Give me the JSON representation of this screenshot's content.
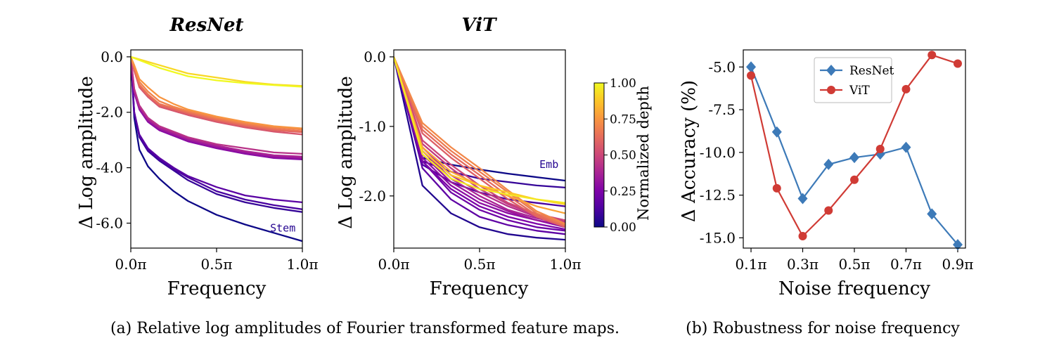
{
  "figure": {
    "caption_a": "(a) Relative log amplitudes of Fourier transformed feature maps.",
    "caption_b": "(b) Robustness for noise frequency"
  },
  "chart_data": [
    {
      "type": "line",
      "title": "ResNet",
      "xlabel": "Frequency",
      "ylabel": "Δ Log amplitude",
      "xlim": [
        0,
        1
      ],
      "ylim": [
        -6.9,
        0.25
      ],
      "xticks": [
        0,
        0.5,
        1
      ],
      "xtick_labels": [
        "0.0π",
        "0.5π",
        "1.0π"
      ],
      "yticks": [
        0,
        -2,
        -4,
        -6
      ],
      "ytick_labels": [
        "0.0",
        "-2.0",
        "-4.0",
        "-6.0"
      ],
      "colormap": "plasma",
      "color_range": [
        0,
        1
      ],
      "annotation": {
        "text": "Stem",
        "x": 0.96,
        "y": -6.3
      },
      "series": [
        {
          "depth": 0.0,
          "x": [
            0,
            0.02,
            0.05,
            0.1,
            0.167,
            0.25,
            0.333,
            0.5,
            0.667,
            0.833,
            1.0
          ],
          "y": [
            0,
            -2.2,
            -3.35,
            -3.95,
            -4.4,
            -4.85,
            -5.2,
            -5.7,
            -6.05,
            -6.35,
            -6.65
          ]
        },
        {
          "depth": 0.08,
          "x": [
            0,
            0.02,
            0.05,
            0.1,
            0.167,
            0.25,
            0.333,
            0.5,
            0.667,
            0.833,
            1.0
          ],
          "y": [
            0,
            -2.0,
            -2.9,
            -3.4,
            -3.75,
            -4.1,
            -4.45,
            -4.95,
            -5.25,
            -5.45,
            -5.6
          ]
        },
        {
          "depth": 0.12,
          "x": [
            0,
            0.02,
            0.05,
            0.1,
            0.167,
            0.25,
            0.333,
            0.5,
            0.667,
            0.833,
            1.0
          ],
          "y": [
            0,
            -2.0,
            -2.85,
            -3.35,
            -3.7,
            -4.05,
            -4.35,
            -4.85,
            -5.15,
            -5.35,
            -5.5
          ]
        },
        {
          "depth": 0.16,
          "x": [
            0,
            0.02,
            0.05,
            0.1,
            0.167,
            0.25,
            0.333,
            0.5,
            0.667,
            0.833,
            1.0
          ],
          "y": [
            0,
            -2.0,
            -2.8,
            -3.3,
            -3.65,
            -4.0,
            -4.3,
            -4.7,
            -5.0,
            -5.15,
            -5.25
          ]
        },
        {
          "depth": 0.28,
          "x": [
            0,
            0.02,
            0.05,
            0.1,
            0.167,
            0.25,
            0.333,
            0.5,
            0.667,
            0.833,
            1.0
          ],
          "y": [
            0,
            -1.3,
            -1.9,
            -2.35,
            -2.65,
            -2.85,
            -3.05,
            -3.3,
            -3.5,
            -3.65,
            -3.7
          ]
        },
        {
          "depth": 0.33,
          "x": [
            0,
            0.02,
            0.05,
            0.1,
            0.167,
            0.25,
            0.333,
            0.5,
            0.667,
            0.833,
            1.0
          ],
          "y": [
            0,
            -1.25,
            -1.85,
            -2.3,
            -2.6,
            -2.8,
            -3.0,
            -3.25,
            -3.45,
            -3.6,
            -3.65
          ]
        },
        {
          "depth": 0.38,
          "x": [
            0,
            0.02,
            0.05,
            0.1,
            0.167,
            0.25,
            0.333,
            0.5,
            0.667,
            0.833,
            1.0
          ],
          "y": [
            0,
            -1.2,
            -1.8,
            -2.25,
            -2.55,
            -2.75,
            -2.95,
            -3.2,
            -3.4,
            -3.55,
            -3.6
          ]
        },
        {
          "depth": 0.43,
          "x": [
            0,
            0.02,
            0.05,
            0.1,
            0.167,
            0.25,
            0.333,
            0.5,
            0.667,
            0.833,
            1.0
          ],
          "y": [
            0,
            -1.15,
            -1.75,
            -2.2,
            -2.5,
            -2.7,
            -2.9,
            -3.15,
            -3.3,
            -3.45,
            -3.5
          ]
        },
        {
          "depth": 0.55,
          "x": [
            0,
            0.02,
            0.05,
            0.1,
            0.167,
            0.25,
            0.333,
            0.5,
            0.667,
            0.833,
            1.0
          ],
          "y": [
            0,
            -0.5,
            -1.1,
            -1.45,
            -1.8,
            -1.95,
            -2.1,
            -2.35,
            -2.55,
            -2.7,
            -2.8
          ]
        },
        {
          "depth": 0.6,
          "x": [
            0,
            0.02,
            0.05,
            0.1,
            0.167,
            0.25,
            0.333,
            0.5,
            0.667,
            0.833,
            1.0
          ],
          "y": [
            0,
            -0.45,
            -1.05,
            -1.4,
            -1.75,
            -1.9,
            -2.05,
            -2.3,
            -2.5,
            -2.65,
            -2.72
          ]
        },
        {
          "depth": 0.65,
          "x": [
            0,
            0.02,
            0.05,
            0.1,
            0.167,
            0.25,
            0.333,
            0.5,
            0.667,
            0.833,
            1.0
          ],
          "y": [
            0,
            -0.4,
            -1.0,
            -1.35,
            -1.7,
            -1.85,
            -2.0,
            -2.25,
            -2.45,
            -2.6,
            -2.68
          ]
        },
        {
          "depth": 0.7,
          "x": [
            0,
            0.02,
            0.05,
            0.1,
            0.167,
            0.25,
            0.333,
            0.5,
            0.667,
            0.833,
            1.0
          ],
          "y": [
            0,
            -0.35,
            -0.9,
            -1.25,
            -1.6,
            -1.8,
            -1.95,
            -2.2,
            -2.4,
            -2.55,
            -2.62
          ]
        },
        {
          "depth": 0.75,
          "x": [
            0,
            0.02,
            0.05,
            0.1,
            0.167,
            0.25,
            0.333,
            0.5,
            0.667,
            0.833,
            1.0
          ],
          "y": [
            0,
            -0.3,
            -0.8,
            -1.1,
            -1.45,
            -1.7,
            -1.9,
            -2.15,
            -2.35,
            -2.5,
            -2.58
          ]
        },
        {
          "depth": 0.92,
          "x": [
            0,
            0.167,
            0.333,
            0.5,
            0.667,
            0.833,
            1.0
          ],
          "y": [
            0,
            -0.3,
            -0.6,
            -0.75,
            -0.9,
            -1.0,
            -1.05
          ]
        },
        {
          "depth": 1.0,
          "x": [
            0,
            0.167,
            0.333,
            0.5,
            0.667,
            0.833,
            1.0
          ],
          "y": [
            0,
            -0.4,
            -0.7,
            -0.85,
            -0.95,
            -1.02,
            -1.08
          ]
        }
      ]
    },
    {
      "type": "line",
      "title": "ViT",
      "xlabel": "Frequency",
      "ylabel": "Δ Log amplitude",
      "xlim": [
        0,
        1
      ],
      "ylim": [
        -2.75,
        0.1
      ],
      "xticks": [
        0,
        0.5,
        1
      ],
      "xtick_labels": [
        "0.0π",
        "0.5π",
        "1.0π"
      ],
      "yticks": [
        0,
        -1,
        -2
      ],
      "ytick_labels": [
        "0.0",
        "-1.0",
        "-2.0"
      ],
      "colormap": "plasma",
      "color_range": [
        0,
        1
      ],
      "annotation": {
        "text": "Emb",
        "x": 0.96,
        "y": -1.6
      },
      "series": [
        {
          "depth": 0.0,
          "x": [
            0,
            0.167,
            0.333,
            0.5,
            0.667,
            0.833,
            1.0
          ],
          "y": [
            0,
            -1.45,
            -1.55,
            -1.62,
            -1.68,
            -1.73,
            -1.78
          ]
        },
        {
          "depth": 0.04,
          "x": [
            0,
            0.167,
            0.333,
            0.5,
            0.667,
            0.833,
            1.0
          ],
          "y": [
            0,
            -1.85,
            -2.25,
            -2.45,
            -2.55,
            -2.6,
            -2.63
          ]
        },
        {
          "depth": 0.08,
          "x": [
            0,
            0.167,
            0.333,
            0.5,
            0.667,
            0.833,
            1.0
          ],
          "y": [
            0,
            -1.5,
            -1.65,
            -1.75,
            -1.8,
            -1.85,
            -1.88
          ]
        },
        {
          "depth": 0.12,
          "x": [
            0,
            0.167,
            0.333,
            0.5,
            0.667,
            0.833,
            1.0
          ],
          "y": [
            0,
            -1.55,
            -1.8,
            -1.95,
            -2.05,
            -2.1,
            -2.15
          ]
        },
        {
          "depth": 0.17,
          "x": [
            0,
            0.167,
            0.333,
            0.5,
            0.667,
            0.833,
            1.0
          ],
          "y": [
            0,
            -1.6,
            -2.05,
            -2.3,
            -2.42,
            -2.5,
            -2.55
          ]
        },
        {
          "depth": 0.21,
          "x": [
            0,
            0.167,
            0.333,
            0.5,
            0.667,
            0.833,
            1.0
          ],
          "y": [
            0,
            -1.5,
            -1.95,
            -2.2,
            -2.35,
            -2.45,
            -2.5
          ]
        },
        {
          "depth": 0.25,
          "x": [
            0,
            0.167,
            0.333,
            0.5,
            0.667,
            0.833,
            1.0
          ],
          "y": [
            0,
            -1.5,
            -1.9,
            -2.15,
            -2.3,
            -2.4,
            -2.48
          ]
        },
        {
          "depth": 0.29,
          "x": [
            0,
            0.167,
            0.333,
            0.5,
            0.667,
            0.833,
            1.0
          ],
          "y": [
            0,
            -1.45,
            -1.85,
            -2.1,
            -2.25,
            -2.35,
            -2.45
          ]
        },
        {
          "depth": 0.33,
          "x": [
            0,
            0.167,
            0.333,
            0.5,
            0.667,
            0.833,
            1.0
          ],
          "y": [
            0,
            -1.4,
            -1.8,
            -2.05,
            -2.22,
            -2.35,
            -2.42
          ]
        },
        {
          "depth": 0.38,
          "x": [
            0,
            0.167,
            0.333,
            0.5,
            0.667,
            0.833,
            1.0
          ],
          "y": [
            0,
            -1.35,
            -1.75,
            -2.0,
            -2.2,
            -2.32,
            -2.4
          ]
        },
        {
          "depth": 0.42,
          "x": [
            0,
            0.167,
            0.333,
            0.5,
            0.667,
            0.833,
            1.0
          ],
          "y": [
            0,
            -1.3,
            -1.7,
            -1.95,
            -2.15,
            -2.3,
            -2.38
          ]
        },
        {
          "depth": 0.46,
          "x": [
            0,
            0.167,
            0.333,
            0.5,
            0.667,
            0.833,
            1.0
          ],
          "y": [
            0,
            -1.25,
            -1.6,
            -1.9,
            -2.12,
            -2.28,
            -2.36
          ]
        },
        {
          "depth": 0.5,
          "x": [
            0,
            0.167,
            0.333,
            0.5,
            0.667,
            0.833,
            1.0
          ],
          "y": [
            0,
            -1.2,
            -1.55,
            -1.85,
            -2.1,
            -2.26,
            -2.35
          ]
        },
        {
          "depth": 0.58,
          "x": [
            0,
            0.167,
            0.333,
            0.5,
            0.667,
            0.833,
            1.0
          ],
          "y": [
            0,
            -1.1,
            -1.45,
            -1.75,
            -2.05,
            -2.3,
            -2.45
          ]
        },
        {
          "depth": 0.62,
          "x": [
            0,
            0.167,
            0.333,
            0.5,
            0.667,
            0.833,
            1.0
          ],
          "y": [
            0,
            -1.05,
            -1.4,
            -1.7,
            -2.0,
            -2.28,
            -2.43
          ]
        },
        {
          "depth": 0.67,
          "x": [
            0,
            0.167,
            0.333,
            0.5,
            0.667,
            0.833,
            1.0
          ],
          "y": [
            0,
            -1.0,
            -1.35,
            -1.65,
            -1.95,
            -2.25,
            -2.42
          ]
        },
        {
          "depth": 0.71,
          "x": [
            0,
            0.167,
            0.333,
            0.5,
            0.667,
            0.833,
            1.0
          ],
          "y": [
            0,
            -0.95,
            -1.3,
            -1.6,
            -1.92,
            -2.22,
            -2.4
          ]
        },
        {
          "depth": 0.79,
          "x": [
            0,
            0.167,
            0.333,
            0.5,
            0.667,
            0.833,
            1.0
          ],
          "y": [
            0,
            -1.3,
            -1.65,
            -1.85,
            -2.0,
            -2.15,
            -2.25
          ]
        },
        {
          "depth": 0.88,
          "x": [
            0,
            0.167,
            0.333,
            0.5,
            0.667,
            0.833,
            1.0
          ],
          "y": [
            0,
            -1.35,
            -1.7,
            -1.85,
            -1.95,
            -2.05,
            -2.12
          ]
        },
        {
          "depth": 0.96,
          "x": [
            0,
            0.167,
            0.333,
            0.5,
            0.667,
            0.833,
            1.0
          ],
          "y": [
            0,
            -1.4,
            -1.75,
            -1.9,
            -1.98,
            -2.05,
            -2.1
          ]
        }
      ]
    },
    {
      "type": "colorbar",
      "label": "Normalized depth",
      "colormap": "plasma",
      "range": [
        0,
        1
      ],
      "ticks": [
        0,
        0.25,
        0.5,
        0.75,
        1.0
      ],
      "tick_labels": [
        "0.00",
        "0.25",
        "0.50",
        "0.75",
        "1.00"
      ]
    },
    {
      "type": "line",
      "title": "",
      "xlabel": "Noise frequency",
      "ylabel": "Δ Accuracy (%)",
      "xlim": [
        0.07,
        0.93
      ],
      "ylim": [
        -15.6,
        -4.0
      ],
      "xticks": [
        0.1,
        0.3,
        0.5,
        0.7,
        0.9
      ],
      "xtick_labels": [
        "0.1π",
        "0.3π",
        "0.5π",
        "0.7π",
        "0.9π"
      ],
      "yticks": [
        -5,
        -7.5,
        -10,
        -12.5,
        -15
      ],
      "ytick_labels": [
        "-5.0",
        "-7.5",
        "-10.0",
        "-12.5",
        "-15.0"
      ],
      "legend": "top-center",
      "series": [
        {
          "name": "ResNet",
          "color": "#3d7ab8",
          "marker": "diamond",
          "x": [
            0.1,
            0.2,
            0.3,
            0.4,
            0.5,
            0.6,
            0.7,
            0.8,
            0.9
          ],
          "y": [
            -5.0,
            -8.8,
            -12.7,
            -10.7,
            -10.3,
            -10.1,
            -9.7,
            -13.6,
            -15.4
          ]
        },
        {
          "name": "ViT",
          "color": "#d03b35",
          "marker": "circle",
          "x": [
            0.1,
            0.2,
            0.3,
            0.4,
            0.5,
            0.6,
            0.7,
            0.8,
            0.9
          ],
          "y": [
            -5.5,
            -12.1,
            -14.9,
            -13.4,
            -11.6,
            -9.8,
            -6.3,
            -4.3,
            -4.8
          ]
        }
      ]
    }
  ]
}
